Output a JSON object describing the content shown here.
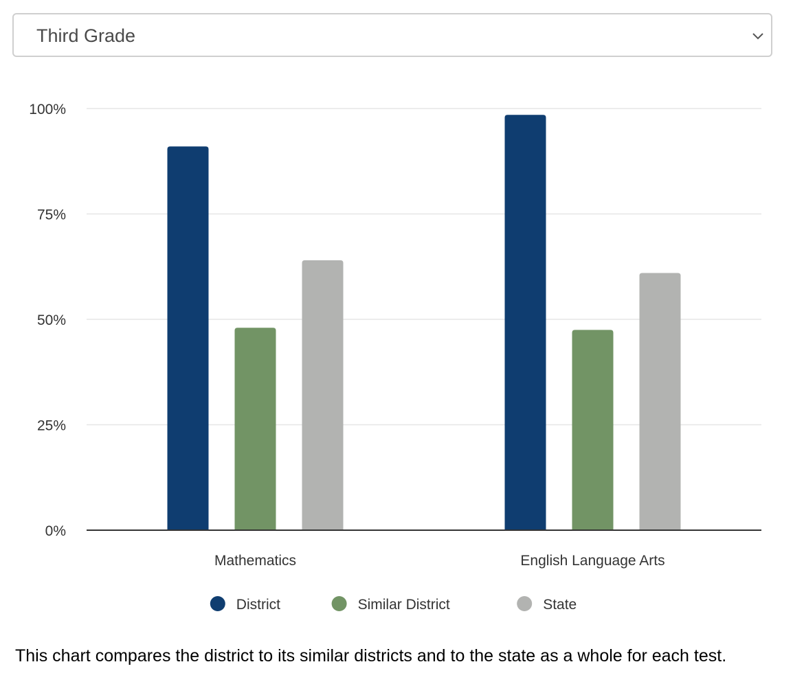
{
  "grade_select": {
    "value": "Third Grade",
    "icon": "chevron-down-icon"
  },
  "chart_data": {
    "type": "bar",
    "title": "",
    "xlabel": "",
    "ylabel": "",
    "categories": [
      "Mathematics",
      "English Language Arts"
    ],
    "series": [
      {
        "name": "District",
        "color": "#0f3d70",
        "values": [
          91,
          98.5
        ]
      },
      {
        "name": "Similar District",
        "color": "#729465",
        "values": [
          48,
          47.5
        ]
      },
      {
        "name": "State",
        "color": "#b2b3b1",
        "values": [
          64,
          61
        ]
      }
    ],
    "ylim": [
      0,
      100
    ],
    "yticks": [
      0,
      25,
      50,
      75,
      100
    ],
    "ytick_labels": [
      "0%",
      "25%",
      "50%",
      "75%",
      "100%"
    ],
    "grid": true,
    "legend_position": "bottom-center"
  },
  "caption": "This chart compares the district to its similar districts and to the state as a whole for each test."
}
